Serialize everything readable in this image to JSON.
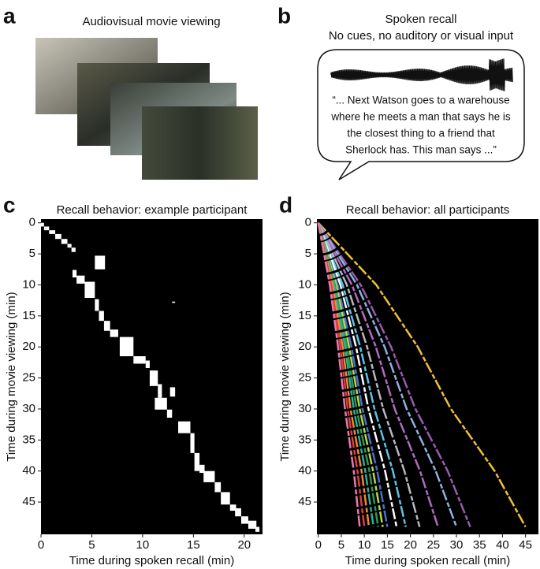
{
  "panel_a": {
    "letter": "a",
    "title": "Audiovisual movie viewing"
  },
  "panel_b": {
    "letter": "b",
    "title": "Spoken recall",
    "subtitle": "No cues, no auditory or visual input",
    "quote": [
      "“... Next Watson goes to a warehouse",
      "where he meets a man that says he is",
      "the closest thing to a friend that",
      "Sherlock has. This man says ...”"
    ]
  },
  "chart_data": [
    {
      "type": "rects",
      "panel": "c",
      "title": "Recall behavior: example participant",
      "x_label": "Time during spoken recall (min)",
      "y_label": "Time during movie viewing (min)",
      "color": "#ffffff",
      "background": "#000000",
      "xlim": [
        0,
        21.8
      ],
      "ylim": [
        -0.6,
        50.2
      ],
      "y_inverted": true,
      "xticks": [
        0,
        5,
        10,
        15,
        20
      ],
      "yticks": [
        0,
        5,
        10,
        15,
        20,
        25,
        30,
        35,
        40,
        45
      ],
      "rects": [
        [
          0,
          0.3,
          0,
          0.6
        ],
        [
          0.3,
          0.8,
          0.6,
          1.2
        ],
        [
          0.8,
          1.4,
          1.2,
          1.8
        ],
        [
          1.4,
          2.0,
          1.8,
          2.6
        ],
        [
          2.0,
          2.6,
          2.6,
          3.4
        ],
        [
          2.6,
          3.0,
          3.4,
          4.0
        ],
        [
          3.0,
          3.4,
          4.0,
          4.7
        ],
        [
          5.3,
          6.3,
          5.3,
          7.5
        ],
        [
          3.1,
          3.5,
          7.6,
          8.8
        ],
        [
          3.5,
          4.3,
          8.5,
          9.8
        ],
        [
          4.3,
          5.3,
          9.5,
          12.1
        ],
        [
          12.9,
          13.2,
          12.7,
          12.9
        ],
        [
          5.3,
          5.7,
          12.3,
          14.2
        ],
        [
          5.7,
          6.2,
          14.2,
          15.8
        ],
        [
          6.2,
          6.8,
          15.8,
          17.4
        ],
        [
          6.8,
          7.6,
          17.2,
          18.4
        ],
        [
          7.75,
          9.1,
          18.4,
          21.5
        ],
        [
          9.1,
          10.3,
          21.5,
          22.7
        ],
        [
          10.3,
          10.7,
          22.2,
          23.4
        ],
        [
          10.7,
          11.5,
          23.8,
          26.3
        ],
        [
          11.5,
          11.9,
          26.0,
          28.2
        ],
        [
          12.7,
          13.2,
          26.5,
          28.0
        ],
        [
          11.2,
          12.4,
          28.2,
          30.1
        ],
        [
          12.4,
          12.9,
          30.1,
          31.4
        ],
        [
          13.5,
          14.7,
          32.0,
          33.9
        ],
        [
          14.7,
          15.1,
          33.9,
          37.1
        ],
        [
          15.1,
          15.6,
          37.1,
          40.0
        ],
        [
          15.6,
          16.1,
          39.0,
          40.3
        ],
        [
          16.0,
          17.1,
          40.0,
          41.8
        ],
        [
          17.1,
          17.7,
          41.8,
          43.4
        ],
        [
          17.7,
          18.6,
          43.4,
          45.4
        ],
        [
          18.6,
          19.2,
          45.4,
          46.4
        ],
        [
          19.1,
          19.7,
          46.0,
          47.3
        ],
        [
          19.7,
          20.4,
          47.3,
          48.5
        ],
        [
          20.4,
          21.2,
          48.0,
          49.3
        ],
        [
          21.1,
          21.5,
          49.0,
          49.8
        ]
      ]
    },
    {
      "type": "line",
      "panel": "d",
      "title": "Recall behavior: all participants",
      "x_label": "Time during spoken recall (min)",
      "y_label": "Time during movie viewing (min)",
      "background": "#000000",
      "xlim": [
        -0.3,
        47.8
      ],
      "ylim": [
        -0.6,
        50.2
      ],
      "y_inverted": true,
      "xticks": [
        0,
        5,
        10,
        15,
        20,
        25,
        30,
        35,
        40,
        45
      ],
      "yticks": [
        0,
        5,
        10,
        15,
        20,
        25,
        30,
        35,
        40,
        45
      ],
      "y": [
        0,
        10,
        20,
        30,
        40,
        49
      ],
      "series": [
        {
          "color": "#f2c230",
          "x": [
            0,
            12.6,
            21.6,
            28.8,
            38.3,
            45
          ]
        },
        {
          "color": "#9a5bb0",
          "x": [
            0,
            9.2,
            15.8,
            21.1,
            28.1,
            33
          ]
        },
        {
          "color": "#8fb3dd",
          "x": [
            0,
            8.4,
            14.4,
            19.2,
            25.5,
            30
          ]
        },
        {
          "color": "#b06cc0",
          "x": [
            0,
            7.3,
            12.5,
            16.6,
            22.1,
            26
          ]
        },
        {
          "color": "#b8b8c0",
          "x": [
            0,
            6.2,
            10.6,
            14.1,
            18.7,
            22
          ]
        },
        {
          "color": "#5fc3e8",
          "x": [
            0,
            5.3,
            9.1,
            12.2,
            16.2,
            19
          ]
        },
        {
          "color": "#ffffff",
          "x": [
            0,
            4.8,
            8.2,
            10.9,
            14.5,
            17
          ]
        },
        {
          "color": "#4a6fd0",
          "x": [
            0,
            4.2,
            7.2,
            9.6,
            12.8,
            15
          ]
        },
        {
          "color": "#b8d84a",
          "x": [
            0,
            3.9,
            6.7,
            9.0,
            11.9,
            14
          ]
        },
        {
          "color": "#2e9a4e",
          "x": [
            0,
            3.6,
            6.2,
            8.3,
            11.1,
            13
          ]
        },
        {
          "color": "#2ab0a0",
          "x": [
            0,
            3.4,
            5.8,
            7.7,
            10.2,
            12
          ]
        },
        {
          "color": "#f08a30",
          "x": [
            0,
            3.1,
            5.3,
            7.0,
            9.4,
            11
          ]
        },
        {
          "color": "#e0403a",
          "x": [
            0,
            2.8,
            4.8,
            6.4,
            8.5,
            10
          ]
        },
        {
          "color": "#e87ab0",
          "x": [
            0,
            2.5,
            4.3,
            5.8,
            7.7,
            9
          ]
        }
      ]
    }
  ]
}
